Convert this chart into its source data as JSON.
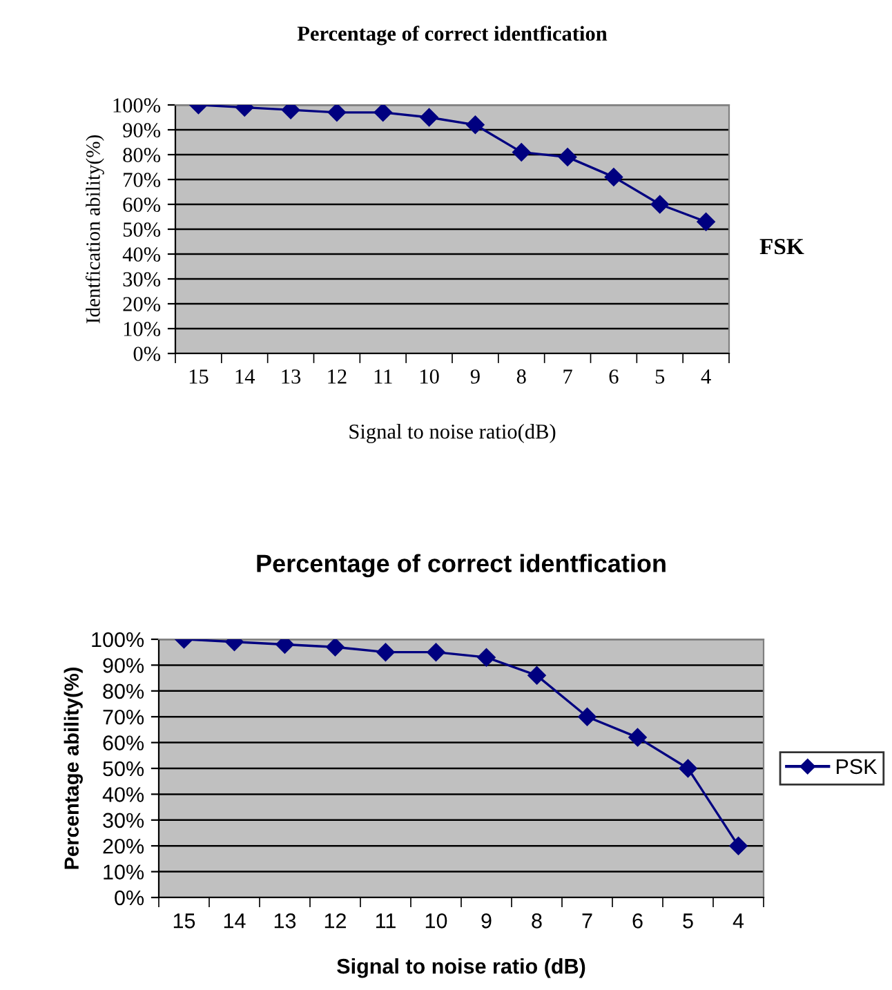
{
  "chart_data": [
    {
      "type": "line",
      "title": "Percentage of correct identfication",
      "xlabel": "Signal to noise ratio(dB)",
      "ylabel": "Identfication ability(%)",
      "categories": [
        "15",
        "14",
        "13",
        "12",
        "11",
        "10",
        "9",
        "8",
        "7",
        "6",
        "5",
        "4"
      ],
      "series": [
        {
          "color": "#000080",
          "values": [
            100,
            99,
            98,
            97,
            97,
            95,
            92,
            81,
            79,
            71,
            60,
            53
          ]
        }
      ],
      "ylim": [
        0,
        100
      ],
      "yticks": [
        {
          "value": 0,
          "label": "0%"
        },
        {
          "value": 10,
          "label": "10%"
        },
        {
          "value": 20,
          "label": "20%"
        },
        {
          "value": 30,
          "label": "30%"
        },
        {
          "value": 40,
          "label": "40%"
        },
        {
          "value": 50,
          "label": "50%"
        },
        {
          "value": 60,
          "label": "60%"
        },
        {
          "value": 70,
          "label": "70%"
        },
        {
          "value": 80,
          "label": "80%"
        },
        {
          "value": 90,
          "label": "90%"
        },
        {
          "value": 100,
          "label": "100%"
        }
      ],
      "grid": "y",
      "marker": "diamond",
      "line_style": "solid",
      "legend": false,
      "annotations": [
        "FSK"
      ]
    },
    {
      "type": "line",
      "title": "Percentage of correct identfication",
      "xlabel": "Signal to noise ratio (dB)",
      "ylabel": "Percentage ability(%)",
      "categories": [
        "15",
        "14",
        "13",
        "12",
        "11",
        "10",
        "9",
        "8",
        "7",
        "6",
        "5",
        "4"
      ],
      "series": [
        {
          "name": "PSK",
          "color": "#000080",
          "values": [
            100,
            99,
            98,
            97,
            95,
            95,
            93,
            86,
            70,
            62,
            50,
            20
          ]
        }
      ],
      "ylim": [
        0,
        100
      ],
      "yticks": [
        {
          "value": 0,
          "label": "0%"
        },
        {
          "value": 10,
          "label": "10%"
        },
        {
          "value": 20,
          "label": "20%"
        },
        {
          "value": 30,
          "label": "30%"
        },
        {
          "value": 40,
          "label": "40%"
        },
        {
          "value": 50,
          "label": "50%"
        },
        {
          "value": 60,
          "label": "60%"
        },
        {
          "value": 70,
          "label": "70%"
        },
        {
          "value": 80,
          "label": "80%"
        },
        {
          "value": 90,
          "label": "90%"
        },
        {
          "value": 100,
          "label": "100%"
        }
      ],
      "grid": "y",
      "marker": "diamond",
      "line_style": "solid",
      "legend": "right"
    }
  ]
}
